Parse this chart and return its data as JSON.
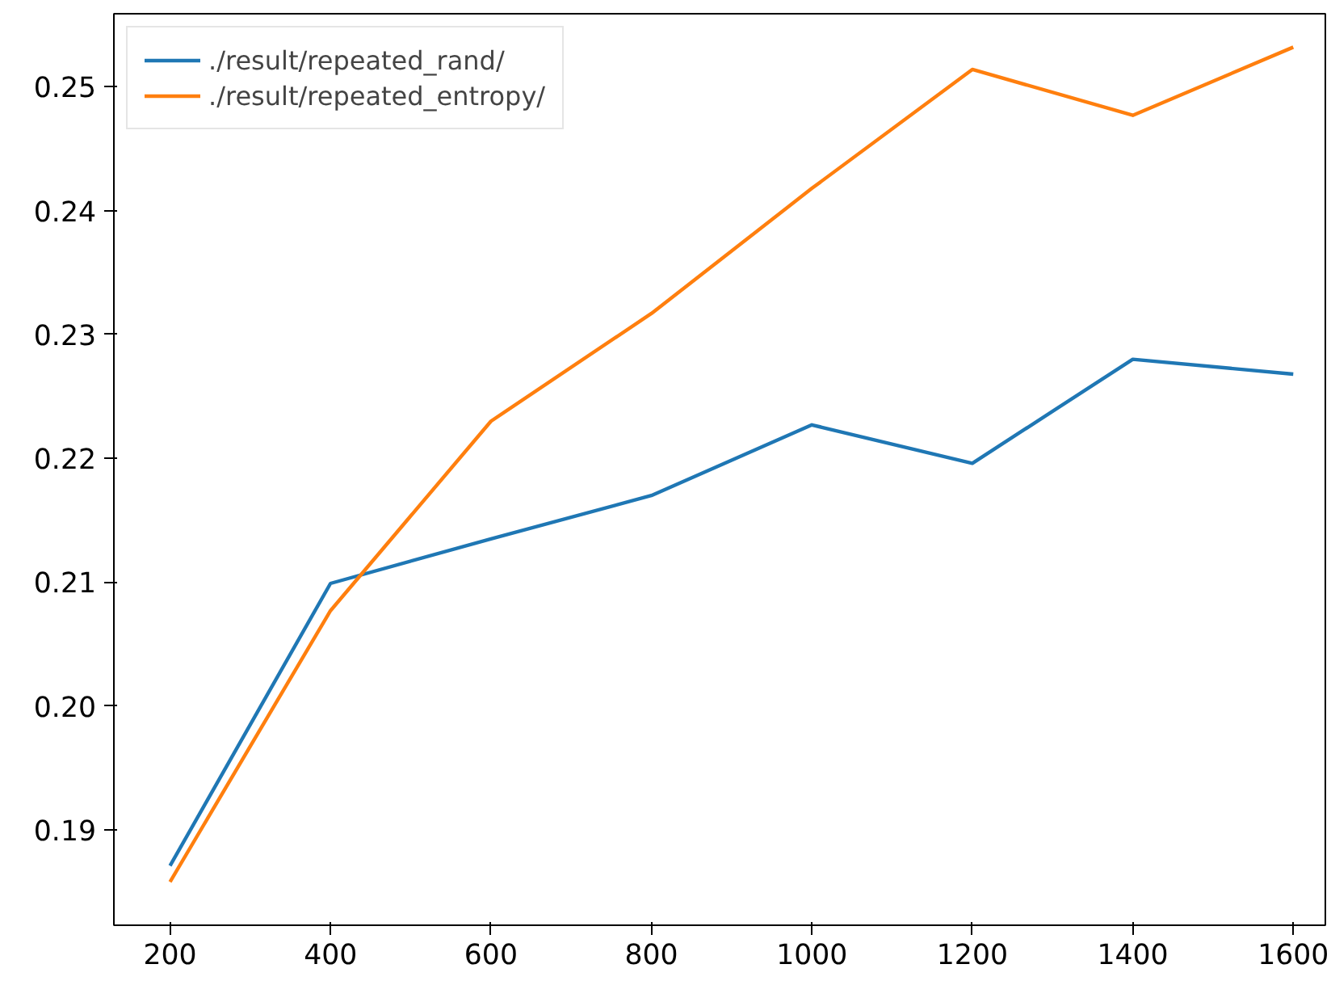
{
  "chart_data": {
    "type": "line",
    "x": [
      200,
      400,
      600,
      800,
      1000,
      1200,
      1400,
      1600
    ],
    "series": [
      {
        "name": "./result/repeated_rand/",
        "color": "#1f77b4",
        "values": [
          0.1871,
          0.2099,
          0.2135,
          0.217,
          0.2227,
          0.2196,
          0.228,
          0.2268
        ]
      },
      {
        "name": "./result/repeated_entropy/",
        "color": "#ff7f0e",
        "values": [
          0.1858,
          0.2077,
          0.223,
          0.2317,
          0.2418,
          0.2514,
          0.2477,
          0.2532
        ]
      }
    ],
    "xlim": [
      130,
      1640
    ],
    "ylim": [
      0.1823,
      0.2559
    ],
    "xticks": [
      200,
      400,
      600,
      800,
      1000,
      1200,
      1400,
      1600
    ],
    "yticks": [
      {
        "value": 0.19,
        "label": "0.19"
      },
      {
        "value": 0.2,
        "label": "0.20"
      },
      {
        "value": 0.21,
        "label": "0.21"
      },
      {
        "value": 0.22,
        "label": "0.22"
      },
      {
        "value": 0.23,
        "label": "0.23"
      },
      {
        "value": 0.24,
        "label": "0.24"
      },
      {
        "value": 0.25,
        "label": "0.25"
      }
    ],
    "grid": false,
    "legend": "top left",
    "marker": "none",
    "line_style": "solid"
  }
}
